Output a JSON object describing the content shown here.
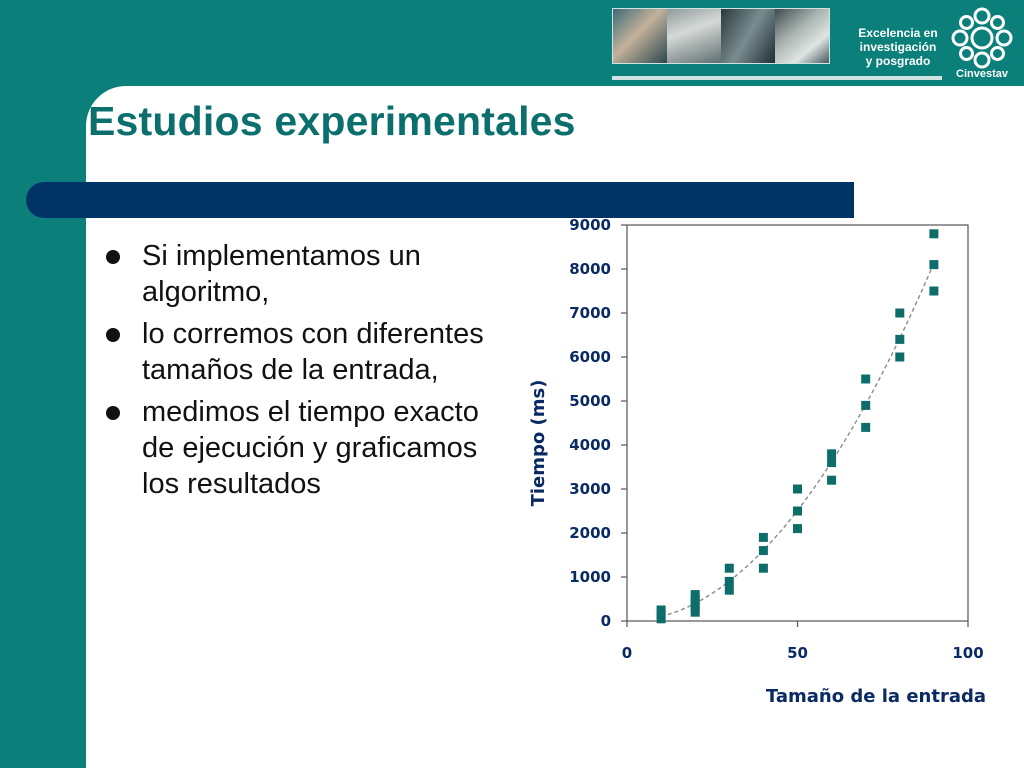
{
  "header": {
    "slogan_lines": [
      "Excelencia en",
      "investigación",
      "y posgrado"
    ],
    "logo_text": "Cinvestav"
  },
  "slide": {
    "title": "Estudios experimentales",
    "bullets": [
      "Si implementamos un algoritmo,",
      "lo corremos con diferentes tamaños de la entrada,",
      "medimos el tiempo exacto de ejecución y graficamos los resultados"
    ]
  },
  "colors": {
    "frame": "#0b7f7a",
    "title": "#0b6f6e",
    "title_bar": "#003366",
    "axis_text": "#0a2a63",
    "marker": "#0d6d6a",
    "trend": "#8a8a8a"
  },
  "chart_data": {
    "type": "scatter",
    "title": "",
    "xlabel": "Tamaño de la entrada",
    "ylabel": "Tiempo (ms)",
    "xlim": [
      0,
      100
    ],
    "ylim": [
      0,
      9000
    ],
    "xticks": [
      0,
      50,
      100
    ],
    "yticks": [
      0,
      1000,
      2000,
      3000,
      4000,
      5000,
      6000,
      7000,
      8000,
      9000
    ],
    "grid": false,
    "legend": "none",
    "trendline": "dashed",
    "series": [
      {
        "x": [
          10,
          10,
          10,
          20,
          20,
          20,
          20,
          20,
          30,
          30,
          30,
          40,
          40,
          40,
          50,
          50,
          50,
          60,
          60,
          60,
          70,
          70,
          70,
          80,
          80,
          80,
          90,
          90,
          90
        ],
        "y": [
          50,
          150,
          250,
          200,
          300,
          400,
          500,
          600,
          700,
          900,
          1200,
          1200,
          1600,
          1900,
          2100,
          2500,
          3000,
          3200,
          3600,
          3800,
          4400,
          4900,
          5500,
          6000,
          6400,
          7000,
          7500,
          8100,
          8800
        ]
      }
    ]
  }
}
